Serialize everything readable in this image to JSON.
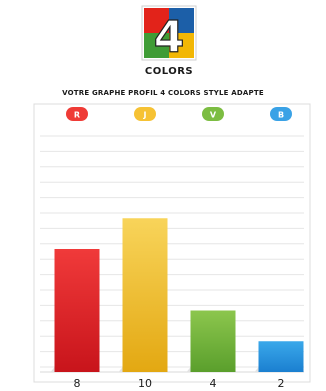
{
  "logo": {
    "text": "COLORS",
    "numeral": "4",
    "colors": [
      "#e2231a",
      "#f2b705",
      "#3f9c35",
      "#1c5fa8"
    ]
  },
  "chart_data": {
    "type": "bar",
    "title": "VOTRE GRAPHE PROFIL 4 COLORS STYLE ADAPTE",
    "categories": [
      "R",
      "J",
      "V",
      "B"
    ],
    "values": [
      8,
      10,
      4,
      2
    ],
    "value_labels": [
      "8",
      "10",
      "4",
      "2"
    ],
    "ylim": [
      0,
      16
    ],
    "grid": true,
    "legend": "top",
    "colors": {
      "R": {
        "top": "#f03a3a",
        "bottom": "#c8141b",
        "badge": "#ef3b36"
      },
      "J": {
        "top": "#f8d45a",
        "bottom": "#e3a812",
        "badge": "#f6c234"
      },
      "V": {
        "top": "#8cc64d",
        "bottom": "#5a9f2c",
        "badge": "#7cbd42"
      },
      "B": {
        "top": "#3aa8ea",
        "bottom": "#1b7fd0",
        "badge": "#3aa2e6"
      }
    }
  }
}
